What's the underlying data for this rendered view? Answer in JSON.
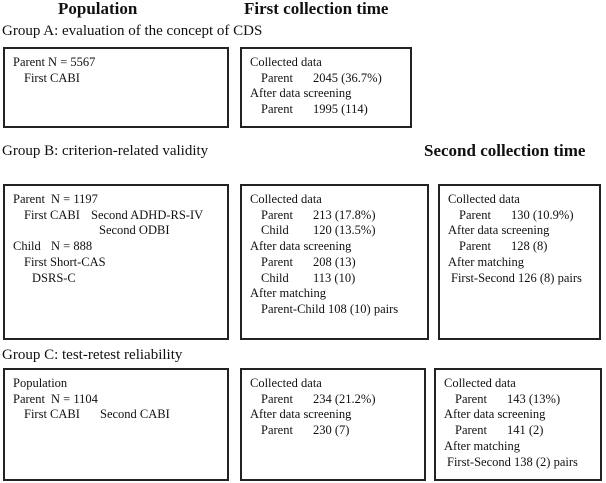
{
  "headers": {
    "population": "Population",
    "first": "First collection time",
    "second": "Second collection time"
  },
  "groupA": {
    "title": "Group A: evaluation of the concept of CDS",
    "population": {
      "line1": "Parent N = 5567",
      "line2": "First CABI"
    },
    "first": {
      "collected_label": "Collected data",
      "parent_label": "Parent",
      "parent_value": "2045 (36.7%)",
      "screening_label": "After data screening",
      "screen_parent_label": "Parent",
      "screen_parent_value": "1995 (114)"
    }
  },
  "groupB": {
    "title": "Group B: criterion-related validity",
    "population": {
      "parent_label": "Parent",
      "parent_n": "N = 1197",
      "first_cabi": "First CABI",
      "second_adhd": "Second ADHD-RS-IV",
      "second_odbi": "Second ODBI",
      "child_label": "Child",
      "child_n": "N = 888",
      "first_short_cas": "First Short-CAS",
      "dsrs_c": "DSRS-C"
    },
    "first": {
      "collected_label": "Collected data",
      "parent_label": "Parent",
      "parent_value": "213 (17.8%)",
      "child_label": "Child",
      "child_value": "120 (13.5%)",
      "screening_label": "After data screening",
      "screen_parent_label": "Parent",
      "screen_parent_value": "208 (13)",
      "screen_child_label": "Child",
      "screen_child_value": "113 (10)",
      "matching_label": "After matching",
      "matching_value": "Parent-Child 108 (10) pairs"
    },
    "second": {
      "collected_label": "Collected data",
      "parent_label": "Parent",
      "parent_value": "130 (10.9%)",
      "screening_label": "After data screening",
      "screen_parent_label": "Parent",
      "screen_parent_value": "128 (8)",
      "matching_label": "After matching",
      "matching_value": "First-Second 126 (8) pairs"
    }
  },
  "groupC": {
    "title": "Group C: test-retest reliability",
    "population": {
      "line1": "Population",
      "parent_label": "Parent",
      "parent_n": "N = 1104",
      "first_cabi": "First CABI",
      "second_cabi": "Second CABI"
    },
    "first": {
      "collected_label": "Collected data",
      "parent_label": "Parent",
      "parent_value": "234 (21.2%)",
      "screening_label": "After data screening",
      "screen_parent_label": "Parent",
      "screen_parent_value": "230 (7)"
    },
    "second": {
      "collected_label": "Collected data",
      "parent_label": "Parent",
      "parent_value": "143 (13%)",
      "screening_label": "After data screening",
      "screen_parent_label": "Parent",
      "screen_parent_value": "141 (2)",
      "matching_label": "After matching",
      "matching_value": "First-Second 138 (2) pairs"
    }
  }
}
